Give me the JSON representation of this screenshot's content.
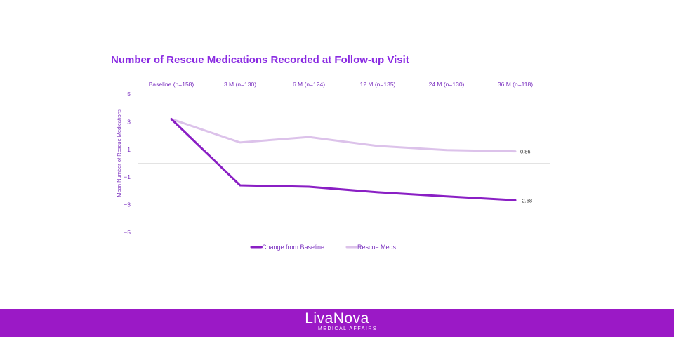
{
  "chart_data": {
    "type": "line",
    "title": "Number of Rescue Medications Recorded at Follow-up Visit",
    "ylabel": "Mean Number of Rescue Medications",
    "categories": [
      "Baseline (n=158)",
      "3 M (n=130)",
      "6 M (n=124)",
      "12 M (n=135)",
      "24 M (n=130)",
      "36 M (n=118)"
    ],
    "ylim": [
      -5,
      5
    ],
    "yticks": [
      "5",
      "3",
      "1",
      "−1",
      "−3",
      "−5"
    ],
    "series": [
      {
        "name": "Change from Baseline",
        "values": [
          3.2,
          -1.6,
          -1.7,
          -2.1,
          -2.4,
          -2.68
        ],
        "color": "#8a1fc4",
        "end_label": "-2.68"
      },
      {
        "name": "Rescue Meds",
        "values": [
          3.2,
          1.5,
          1.9,
          1.25,
          0.95,
          0.86
        ],
        "color": "#dcc2ea",
        "end_label": "0.86"
      }
    ],
    "grid": false,
    "legend_position": "bottom"
  },
  "footer": {
    "brand": "LivaNova",
    "subtitle": "MEDICAL AFFAIRS",
    "background": "#9b19c6"
  }
}
